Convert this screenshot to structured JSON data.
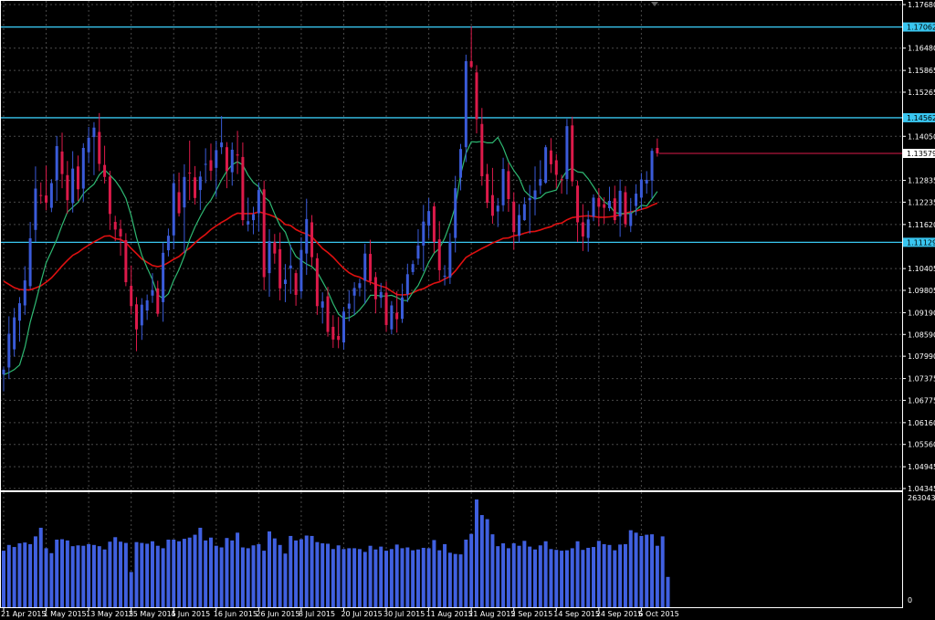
{
  "colors": {
    "background": "#000000",
    "frame": "#ffffff",
    "grid": "#4a4a4a",
    "bull": "#3a5bd9",
    "bear": "#dc1a4a",
    "ma_fast": "#2eb872",
    "ma_slow": "#e01010",
    "level": "#39c6f0",
    "volume": "#4060e0"
  },
  "chart_data": [
    {
      "type": "candlestick",
      "grid": true,
      "y_ticks": [
        "1.17680",
        "1.16480",
        "1.15865",
        "1.15265",
        "1.14050",
        "1.12835",
        "1.12235",
        "1.11620",
        "1.10405",
        "1.09805",
        "1.09190",
        "1.08590",
        "1.07990",
        "1.07375",
        "1.06775",
        "1.06160",
        "1.05560",
        "1.04945",
        "1.04345"
      ],
      "ylim": [
        1.04345,
        1.1768
      ],
      "levels": [
        "1.17062",
        "1.14562",
        "1.11129"
      ],
      "current_price": "1.13579",
      "x_ticks": [
        "21 Apr 2015",
        "1 May 2015",
        "13 May 2015",
        "25 May 2015",
        "4 Jun 2015",
        "16 Jun 2015",
        "26 Jun 2015",
        "8 Jul 2015",
        "20 Jul 2015",
        "30 Jul 2015",
        "11 Aug 2015",
        "21 Aug 2015",
        "2 Sep 2015",
        "14 Sep 2015",
        "24 Sep 2015",
        "6 Oct 2015"
      ],
      "x_tick_index": [
        0,
        8,
        16,
        24,
        32,
        40,
        48,
        56,
        64,
        72,
        80,
        88,
        96,
        104,
        112,
        120
      ],
      "candles": [
        [
          1.0749,
          1.077,
          1.0702,
          1.0762
        ],
        [
          1.0768,
          1.0909,
          1.0736,
          1.0861
        ],
        [
          1.0818,
          1.0932,
          1.0798,
          1.0906
        ],
        [
          1.0897,
          1.0962,
          1.0839,
          1.0945
        ],
        [
          1.0939,
          1.1047,
          1.0913,
          1.1008
        ],
        [
          1.0992,
          1.1169,
          1.0984,
          1.1124
        ],
        [
          1.1147,
          1.1322,
          1.1114,
          1.1261
        ],
        [
          1.1243,
          1.1278,
          1.1219,
          1.1241
        ],
        [
          1.1242,
          1.1324,
          1.1201,
          1.1222
        ],
        [
          1.1208,
          1.1287,
          1.1196,
          1.1276
        ],
        [
          1.1284,
          1.1406,
          1.1227,
          1.1378
        ],
        [
          1.1363,
          1.1415,
          1.1262,
          1.1301
        ],
        [
          1.1298,
          1.1337,
          1.1192,
          1.1229
        ],
        [
          1.1221,
          1.1364,
          1.1195,
          1.1316
        ],
        [
          1.1322,
          1.1352,
          1.1227,
          1.1259
        ],
        [
          1.1261,
          1.1386,
          1.1225,
          1.1373
        ],
        [
          1.1361,
          1.1431,
          1.1331,
          1.1401
        ],
        [
          1.1403,
          1.1444,
          1.1298,
          1.1429
        ],
        [
          1.1417,
          1.1469,
          1.1309,
          1.1329
        ],
        [
          1.1326,
          1.1379,
          1.1275,
          1.1293
        ],
        [
          1.1294,
          1.131,
          1.1147,
          1.1191
        ],
        [
          1.1169,
          1.1186,
          1.1116,
          1.1148
        ],
        [
          1.115,
          1.1175,
          1.1076,
          1.1129
        ],
        [
          1.1119,
          1.1138,
          1.0992,
          1.1003
        ],
        [
          1.0993,
          1.1049,
          1.0914,
          1.0937
        ],
        [
          1.0942,
          1.0962,
          1.0813,
          1.0873
        ],
        [
          1.0884,
          1.0959,
          1.0844,
          1.0941
        ],
        [
          1.0925,
          1.0969,
          1.0899,
          1.0953
        ],
        [
          1.0966,
          1.1028,
          1.0946,
          1.0981
        ],
        [
          1.0986,
          1.1007,
          1.0908,
          1.0916
        ],
        [
          1.0948,
          1.1112,
          1.0894,
          1.1084
        ],
        [
          1.1091,
          1.1151,
          1.1074,
          1.1131
        ],
        [
          1.1132,
          1.1302,
          1.1094,
          1.1276
        ],
        [
          1.1251,
          1.1305,
          1.1184,
          1.1193
        ],
        [
          1.1209,
          1.1328,
          1.1083,
          1.1293
        ],
        [
          1.1305,
          1.1393,
          1.1229,
          1.1303
        ],
        [
          1.1292,
          1.1323,
          1.1217,
          1.1235
        ],
        [
          1.1257,
          1.1309,
          1.1202,
          1.1294
        ],
        [
          1.1327,
          1.1372,
          1.1276,
          1.1329
        ],
        [
          1.1339,
          1.1385,
          1.1284,
          1.131
        ],
        [
          1.1318,
          1.1393,
          1.1238,
          1.1367
        ],
        [
          1.1375,
          1.1461,
          1.1356,
          1.1388
        ],
        [
          1.1375,
          1.1389,
          1.1262,
          1.1309
        ],
        [
          1.1306,
          1.1388,
          1.1269,
          1.1368
        ],
        [
          1.1355,
          1.142,
          1.1301,
          1.1352
        ],
        [
          1.1348,
          1.1388,
          1.1159,
          1.1174
        ],
        [
          1.1162,
          1.1236,
          1.1143,
          1.1171
        ],
        [
          1.1174,
          1.1211,
          1.1135,
          1.119
        ],
        [
          1.1193,
          1.1278,
          1.1142,
          1.1257
        ],
        [
          1.1259,
          1.1283,
          1.0981,
          1.1017
        ],
        [
          1.1028,
          1.1149,
          1.0963,
          1.1116
        ],
        [
          1.1113,
          1.1136,
          1.1054,
          1.1082
        ],
        [
          1.1094,
          1.114,
          1.0953,
          1.0986
        ],
        [
          1.0998,
          1.1053,
          1.0948,
          1.101
        ],
        [
          1.1041,
          1.1106,
          1.0971,
          1.1049
        ],
        [
          1.1028,
          1.1037,
          1.0938,
          1.0968
        ],
        [
          1.0978,
          1.1127,
          1.0959,
          1.1092
        ],
        [
          1.1082,
          1.1233,
          1.1023,
          1.1177
        ],
        [
          1.1168,
          1.1188,
          1.1047,
          1.1072
        ],
        [
          1.1069,
          1.1083,
          1.0913,
          1.0937
        ],
        [
          1.0933,
          1.0975,
          1.0889,
          1.095
        ],
        [
          1.0964,
          1.099,
          1.0853,
          1.0866
        ],
        [
          1.088,
          1.0912,
          1.0822,
          1.0845
        ],
        [
          1.0855,
          1.0907,
          1.0821,
          1.0844
        ],
        [
          1.0837,
          1.0935,
          1.0817,
          1.0922
        ],
        [
          1.093,
          1.0981,
          1.0895,
          1.0944
        ],
        [
          1.0966,
          1.1003,
          1.0913,
          1.0987
        ],
        [
          1.0987,
          1.1013,
          1.0964,
          1.1
        ],
        [
          1.1007,
          1.1109,
          1.0944,
          1.1082
        ],
        [
          1.1081,
          1.112,
          1.0995,
          1.1006
        ],
        [
          1.1017,
          1.1031,
          1.0917,
          1.0956
        ],
        [
          1.096,
          1.1001,
          1.0932,
          1.0976
        ],
        [
          1.0974,
          1.1005,
          1.0866,
          1.0885
        ],
        [
          1.0873,
          1.0951,
          1.0859,
          1.0939
        ],
        [
          1.0919,
          1.0978,
          1.0864,
          1.0901
        ],
        [
          1.0902,
          1.0999,
          1.0891,
          1.0961
        ],
        [
          1.097,
          1.1054,
          1.0948,
          1.1025
        ],
        [
          1.1031,
          1.1063,
          1.1023,
          1.1053
        ],
        [
          1.1068,
          1.1149,
          1.1051,
          1.1104
        ],
        [
          1.1104,
          1.1216,
          1.1033,
          1.117
        ],
        [
          1.1159,
          1.1235,
          1.1124,
          1.1199
        ],
        [
          1.1212,
          1.1222,
          1.1083,
          1.1114
        ],
        [
          1.1121,
          1.1171,
          1.1007,
          1.1036
        ],
        [
          1.1018,
          1.105,
          1.0994,
          1.1021
        ],
        [
          1.1016,
          1.1138,
          1.0998,
          1.1114
        ],
        [
          1.1125,
          1.1296,
          1.1085,
          1.1262
        ],
        [
          1.1291,
          1.1384,
          1.1256,
          1.137
        ],
        [
          1.1375,
          1.163,
          1.1334,
          1.1612
        ],
        [
          1.1612,
          1.1708,
          1.1592,
          1.1596
        ],
        [
          1.1581,
          1.1601,
          1.1413,
          1.1452
        ],
        [
          1.1439,
          1.1483,
          1.1269,
          1.1295
        ],
        [
          1.1301,
          1.1329,
          1.1207,
          1.1222
        ],
        [
          1.1243,
          1.1318,
          1.1164,
          1.1186
        ],
        [
          1.1198,
          1.1235,
          1.1155,
          1.1214
        ],
        [
          1.1215,
          1.1346,
          1.1198,
          1.1315
        ],
        [
          1.1309,
          1.1332,
          1.1197,
          1.1232
        ],
        [
          1.1225,
          1.1251,
          1.1092,
          1.1141
        ],
        [
          1.1131,
          1.1218,
          1.1112,
          1.1188
        ],
        [
          1.1174,
          1.1237,
          1.1172,
          1.1218
        ],
        [
          1.1229,
          1.1271,
          1.1137,
          1.1235
        ],
        [
          1.1231,
          1.1322,
          1.1187,
          1.1256
        ],
        [
          1.1269,
          1.1339,
          1.1246,
          1.1287
        ],
        [
          1.1277,
          1.1381,
          1.1274,
          1.1375
        ],
        [
          1.1366,
          1.14,
          1.1304,
          1.1328
        ],
        [
          1.1339,
          1.1356,
          1.1262,
          1.1299
        ],
        [
          1.1287,
          1.1299,
          1.1247,
          1.1284
        ],
        [
          1.1287,
          1.1453,
          1.1245,
          1.1433
        ],
        [
          1.1435,
          1.1459,
          1.1267,
          1.1281
        ],
        [
          1.1269,
          1.1283,
          1.1114,
          1.1168
        ],
        [
          1.1168,
          1.1218,
          1.1089,
          1.1129
        ],
        [
          1.1125,
          1.12,
          1.1087,
          1.1176
        ],
        [
          1.1184,
          1.1245,
          1.1171,
          1.1236
        ],
        [
          1.1235,
          1.1262,
          1.1157,
          1.1211
        ],
        [
          1.1218,
          1.1237,
          1.1164,
          1.1208
        ],
        [
          1.1207,
          1.1266,
          1.1199,
          1.1227
        ],
        [
          1.1234,
          1.1269,
          1.1164,
          1.1174
        ],
        [
          1.1184,
          1.1286,
          1.1128,
          1.1255
        ],
        [
          1.1251,
          1.1268,
          1.1154,
          1.1163
        ],
        [
          1.1158,
          1.1235,
          1.1141,
          1.1192
        ],
        [
          1.1213,
          1.1273,
          1.1187,
          1.1247
        ],
        [
          1.1236,
          1.1304,
          1.1202,
          1.1286
        ],
        [
          1.1275,
          1.1309,
          1.1247,
          1.1285
        ],
        [
          1.1283,
          1.1372,
          1.1235,
          1.1365
        ],
        [
          1.1373,
          1.1399,
          1.1349,
          1.1358
        ]
      ],
      "ma_fast": [
        1.0748,
        1.0754,
        1.0762,
        1.0775,
        1.0824,
        1.0893,
        1.0946,
        1.1003,
        1.1057,
        1.1088,
        1.1121,
        1.116,
        1.1196,
        1.121,
        1.1223,
        1.1247,
        1.1261,
        1.1273,
        1.1299,
        1.1313,
        1.1298,
        1.1283,
        1.1262,
        1.1234,
        1.1186,
        1.1126,
        1.1077,
        1.1043,
        1.101,
        1.0968,
        1.0958,
        1.0971,
        1.1008,
        1.1038,
        1.1075,
        1.1121,
        1.1155,
        1.1184,
        1.1211,
        1.1229,
        1.1256,
        1.1285,
        1.1309,
        1.1327,
        1.1335,
        1.1326,
        1.1298,
        1.1278,
        1.1266,
        1.1238,
        1.1226,
        1.1191,
        1.1159,
        1.1141,
        1.1101,
        1.1074,
        1.1063,
        1.1053,
        1.1046,
        1.1031,
        1.1005,
        1.0978,
        1.0944,
        1.0915,
        1.0903,
        1.0905,
        1.0913,
        1.0927,
        1.0945,
        1.0967,
        1.0967,
        1.0965,
        1.0965,
        1.0967,
        1.0961,
        1.0953,
        1.0952,
        1.0975,
        1.0994,
        1.1025,
        1.1058,
        1.1083,
        1.1096,
        1.1125,
        1.1164,
        1.1212,
        1.1299,
        1.1358,
        1.139,
        1.1389,
        1.1391,
        1.1387,
        1.1387,
        1.1402,
        1.1374,
        1.1336,
        1.1311,
        1.1291,
        1.1255,
        1.1241,
        1.1232,
        1.1236,
        1.1249,
        1.1253,
        1.1257,
        1.1288,
        1.131,
        1.1317,
        1.1307,
        1.1305,
        1.1288,
        1.1266,
        1.1243,
        1.1225,
        1.1215,
        1.1195,
        1.1192,
        1.1192,
        1.1192,
        1.1202,
        1.1215,
        1.1213,
        1.1232,
        1.1253
      ],
      "ma_slow": [
        1.1006,
        1.0997,
        1.0988,
        1.0983,
        1.0982,
        1.0982,
        1.0987,
        1.0993,
        1.1003,
        1.1015,
        1.1031,
        1.1048,
        1.1063,
        1.1077,
        1.1085,
        1.1096,
        1.1105,
        1.1114,
        1.1122,
        1.113,
        1.1131,
        1.1123,
        1.1121,
        1.1112,
        1.1096,
        1.1082,
        1.1067,
        1.1058,
        1.1049,
        1.1046,
        1.1049,
        1.1057,
        1.1066,
        1.1074,
        1.1087,
        1.1097,
        1.1111,
        1.1124,
        1.1135,
        1.1148,
        1.1158,
        1.1168,
        1.1176,
        1.1186,
        1.1193,
        1.1192,
        1.1192,
        1.1192,
        1.1197,
        1.1193,
        1.1189,
        1.1183,
        1.1175,
        1.1162,
        1.1159,
        1.1148,
        1.1141,
        1.1136,
        1.1128,
        1.1112,
        1.1096,
        1.1085,
        1.1072,
        1.1056,
        1.1041,
        1.1029,
        1.1021,
        1.1017,
        1.1009,
        1.1003,
        1.0997,
        1.0992,
        1.0988,
        1.0978,
        1.0969,
        1.0968,
        1.0969,
        1.0974,
        1.0981,
        1.0985,
        1.0993,
        1.1,
        1.1004,
        1.1012,
        1.1019,
        1.1034,
        1.1053,
        1.1071,
        1.108,
        1.1088,
        1.1096,
        1.1103,
        1.1111,
        1.1117,
        1.1124,
        1.1125,
        1.1131,
        1.1133,
        1.1138,
        1.1142,
        1.1143,
        1.1147,
        1.1152,
        1.1156,
        1.1164,
        1.1166,
        1.1175,
        1.1181,
        1.1183,
        1.1185,
        1.1186,
        1.1184,
        1.1182,
        1.1182,
        1.1183,
        1.1185,
        1.1189,
        1.1193,
        1.1197,
        1.1199,
        1.1204,
        1.1208,
        1.1215,
        1.1221
      ]
    },
    {
      "type": "bar",
      "max_label": "263043",
      "zero_label": "0",
      "ylim": [
        0,
        263043
      ],
      "volume": [
        138000,
        152000,
        147000,
        156000,
        158000,
        154000,
        173000,
        194000,
        144000,
        132000,
        165000,
        166000,
        163000,
        149000,
        151000,
        150000,
        154000,
        152000,
        149000,
        141000,
        160000,
        171000,
        160000,
        157000,
        86000,
        159000,
        157000,
        155000,
        161000,
        150000,
        144000,
        165000,
        165000,
        161000,
        167000,
        170000,
        177000,
        194000,
        163000,
        170000,
        150000,
        146000,
        169000,
        163000,
        182000,
        146000,
        144000,
        151000,
        154000,
        138000,
        185000,
        168000,
        152000,
        131000,
        174000,
        163000,
        166000,
        175000,
        174000,
        159000,
        156000,
        155000,
        142000,
        151000,
        142000,
        144000,
        144000,
        142000,
        135000,
        150000,
        141000,
        148000,
        138000,
        142000,
        153000,
        144000,
        146000,
        139000,
        141000,
        145000,
        144000,
        164000,
        139000,
        154000,
        133000,
        130000,
        129000,
        165000,
        179000,
        263000,
        225000,
        215000,
        178000,
        149000,
        156000,
        144000,
        156000,
        150000,
        162000,
        148000,
        141000,
        151000,
        161000,
        142000,
        140000,
        138000,
        139000,
        144000,
        161000,
        140000,
        145000,
        147000,
        162000,
        154000,
        152000,
        139000,
        153000,
        154000,
        188000,
        182000,
        174000,
        177000,
        178000,
        150000,
        173000,
        74000
      ]
    }
  ]
}
